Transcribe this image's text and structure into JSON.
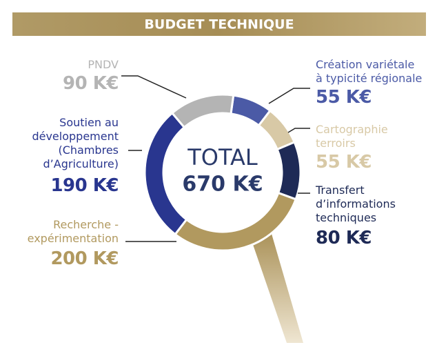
{
  "chart_data": {
    "type": "donut",
    "title": "BUDGET TECHNIQUE",
    "total_title": "TOTAL",
    "total": {
      "value": 670,
      "label": "670 K€"
    },
    "categories": [
      "Création variétale\nà typicité régionale",
      "Cartographie\nterroirs",
      "Transfert\nd’informations\ntechniques",
      "Recherche -\nexpérimentation",
      "Soutien au\ndéveloppement\n(Chambres\nd’Agriculture)",
      "PNDV"
    ],
    "values": [
      55,
      55,
      80,
      200,
      190,
      90
    ],
    "value_labels": [
      "55 K€",
      "55 K€",
      "80 K€",
      "200 K€",
      "190 K€",
      "90 K€"
    ],
    "colors": [
      "#4b5aa6",
      "#d8c9a6",
      "#1e2a56",
      "#b1995f",
      "#29368f",
      "#b4b4b4"
    ]
  }
}
